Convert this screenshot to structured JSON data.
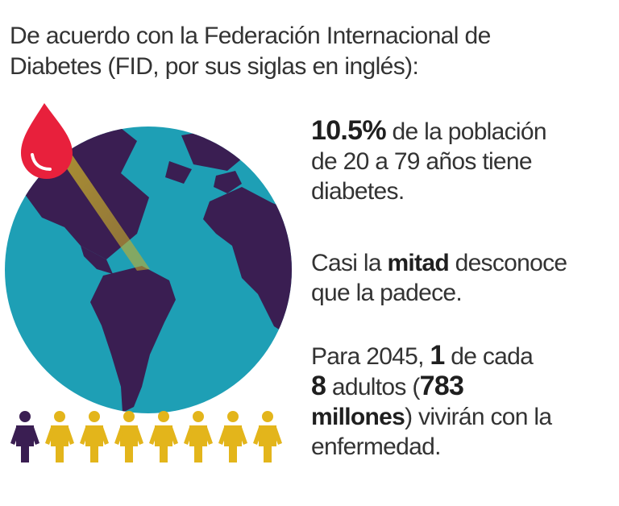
{
  "header": {
    "line1": "De acuerdo con la Federación Internacional de",
    "line2": "Diabetes (FID, por sus siglas en inglés):"
  },
  "stat1": {
    "value": "10.5%",
    "text_a": " de la población",
    "text_b": "de 20 a 79 años tiene",
    "text_c": "diabetes."
  },
  "stat2": {
    "pre": "Casi la ",
    "highlight": "mitad",
    "post": " desconoce",
    "line2": "que la padece."
  },
  "stat3": {
    "pre": "Para 2045, ",
    "num1": "1",
    "post1": " de cada",
    "num2": "8",
    "mid": " adultos (",
    "num3": "783",
    "num4": "millones",
    "post2": ") vivirán con la",
    "line4": "enfermedad."
  },
  "people": {
    "total": 8,
    "highlighted": 1
  },
  "colors": {
    "ocean": "#1e9fb5",
    "land": "#3a1e52",
    "drop": "#e8203c",
    "beam": "#c9ae2a",
    "person_highlight": "#3a1e52",
    "person_default": "#e3b51b",
    "text": "#333333"
  },
  "icons": {
    "drop": "blood-drop-icon",
    "globe": "globe-icon",
    "person": "person-icon"
  }
}
